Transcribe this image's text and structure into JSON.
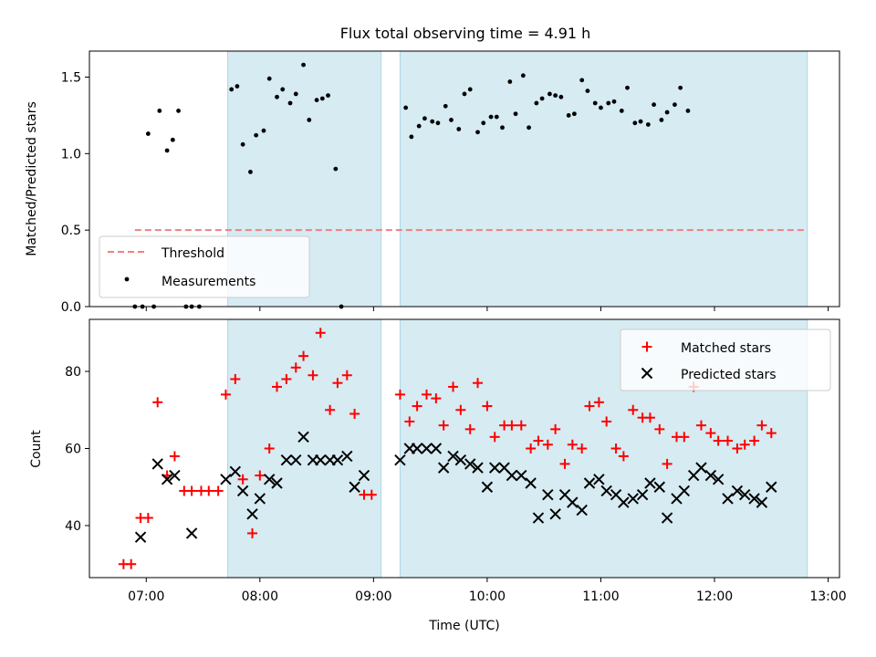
{
  "chart_data": [
    {
      "type": "scatter",
      "title": "Flux total observing time = 4.91 h",
      "xlabel": "",
      "ylabel": "Matched/Predicted stars",
      "xlim": [
        "06:30",
        "13:06"
      ],
      "ylim": [
        0,
        1.67
      ],
      "yticks": [
        "0.0",
        "0.5",
        "1.0",
        "1.5"
      ],
      "grid": false,
      "legend_position": "lower-left",
      "colors": {
        "threshold": "#f08080",
        "measurements": "#000000",
        "shade": "#add8e6"
      },
      "shaded_intervals": [
        [
          "07:43",
          "09:04"
        ],
        [
          "09:14",
          "12:49"
        ]
      ],
      "threshold": {
        "name": "Threshold",
        "value": 0.5,
        "x_range": [
          "06:54",
          "12:49"
        ]
      },
      "series": [
        {
          "name": "Measurements",
          "points": [
            [
              "06:54",
              0.0
            ],
            [
              "06:58",
              0.0
            ],
            [
              "07:01",
              1.13
            ],
            [
              "07:04",
              0.0
            ],
            [
              "07:07",
              1.28
            ],
            [
              "07:11",
              1.02
            ],
            [
              "07:14",
              1.09
            ],
            [
              "07:17",
              1.28
            ],
            [
              "07:21",
              0.0
            ],
            [
              "07:24",
              0.0
            ],
            [
              "07:28",
              0.0
            ],
            [
              "07:45",
              1.42
            ],
            [
              "07:48",
              1.44
            ],
            [
              "07:51",
              1.06
            ],
            [
              "07:55",
              0.88
            ],
            [
              "07:58",
              1.12
            ],
            [
              "08:02",
              1.15
            ],
            [
              "08:05",
              1.49
            ],
            [
              "08:09",
              1.37
            ],
            [
              "08:12",
              1.42
            ],
            [
              "08:16",
              1.33
            ],
            [
              "08:19",
              1.39
            ],
            [
              "08:23",
              1.58
            ],
            [
              "08:26",
              1.22
            ],
            [
              "08:30",
              1.35
            ],
            [
              "08:33",
              1.36
            ],
            [
              "08:36",
              1.38
            ],
            [
              "08:40",
              0.9
            ],
            [
              "08:43",
              0.0
            ],
            [
              "09:17",
              1.3
            ],
            [
              "09:20",
              1.11
            ],
            [
              "09:24",
              1.18
            ],
            [
              "09:27",
              1.23
            ],
            [
              "09:31",
              1.21
            ],
            [
              "09:34",
              1.2
            ],
            [
              "09:38",
              1.31
            ],
            [
              "09:41",
              1.22
            ],
            [
              "09:45",
              1.16
            ],
            [
              "09:48",
              1.39
            ],
            [
              "09:51",
              1.42
            ],
            [
              "09:55",
              1.14
            ],
            [
              "09:58",
              1.2
            ],
            [
              "10:02",
              1.24
            ],
            [
              "10:05",
              1.24
            ],
            [
              "10:08",
              1.17
            ],
            [
              "10:12",
              1.47
            ],
            [
              "10:15",
              1.26
            ],
            [
              "10:19",
              1.51
            ],
            [
              "10:22",
              1.17
            ],
            [
              "10:26",
              1.33
            ],
            [
              "10:29",
              1.36
            ],
            [
              "10:33",
              1.39
            ],
            [
              "10:36",
              1.38
            ],
            [
              "10:39",
              1.37
            ],
            [
              "10:43",
              1.25
            ],
            [
              "10:46",
              1.26
            ],
            [
              "10:50",
              1.48
            ],
            [
              "10:53",
              1.41
            ],
            [
              "10:57",
              1.33
            ],
            [
              "11:00",
              1.3
            ],
            [
              "11:04",
              1.33
            ],
            [
              "11:07",
              1.34
            ],
            [
              "11:11",
              1.28
            ],
            [
              "11:14",
              1.43
            ],
            [
              "11:18",
              1.2
            ],
            [
              "11:21",
              1.21
            ],
            [
              "11:25",
              1.19
            ],
            [
              "11:28",
              1.32
            ],
            [
              "11:32",
              1.22
            ],
            [
              "11:35",
              1.27
            ],
            [
              "11:39",
              1.32
            ],
            [
              "11:42",
              1.43
            ],
            [
              "11:46",
              1.28
            ]
          ]
        }
      ]
    },
    {
      "type": "scatter",
      "title": "",
      "xlabel": "Time (UTC)",
      "ylabel": "Count",
      "xlim": [
        "06:30",
        "13:06"
      ],
      "ylim": [
        26.5,
        93.5
      ],
      "xticks": [
        "07:00",
        "08:00",
        "09:00",
        "10:00",
        "11:00",
        "12:00",
        "13:00"
      ],
      "yticks": [
        "40",
        "60",
        "80"
      ],
      "grid": false,
      "legend_position": "top-right",
      "colors": {
        "matched": "#ff0000",
        "predicted": "#000000",
        "shade": "#add8e6"
      },
      "shaded_intervals": [
        [
          "07:43",
          "09:04"
        ],
        [
          "09:14",
          "12:49"
        ]
      ],
      "series": [
        {
          "name": "Matched stars",
          "marker": "plus",
          "points": [
            [
              "06:48",
              30
            ],
            [
              "06:52",
              30
            ],
            [
              "06:57",
              42
            ],
            [
              "07:01",
              42
            ],
            [
              "07:06",
              72
            ],
            [
              "07:11",
              53
            ],
            [
              "07:15",
              58
            ],
            [
              "07:20",
              49
            ],
            [
              "07:24",
              49
            ],
            [
              "07:29",
              49
            ],
            [
              "07:33",
              49
            ],
            [
              "07:38",
              49
            ],
            [
              "07:42",
              74
            ],
            [
              "07:47",
              78
            ],
            [
              "07:51",
              52
            ],
            [
              "07:56",
              38
            ],
            [
              "08:00",
              53
            ],
            [
              "08:05",
              60
            ],
            [
              "08:09",
              76
            ],
            [
              "08:14",
              78
            ],
            [
              "08:19",
              81
            ],
            [
              "08:23",
              84
            ],
            [
              "08:28",
              79
            ],
            [
              "08:32",
              90
            ],
            [
              "08:37",
              70
            ],
            [
              "08:41",
              77
            ],
            [
              "08:46",
              79
            ],
            [
              "08:50",
              69
            ],
            [
              "08:55",
              48
            ],
            [
              "08:59",
              48
            ],
            [
              "09:14",
              74
            ],
            [
              "09:19",
              67
            ],
            [
              "09:23",
              71
            ],
            [
              "09:28",
              74
            ],
            [
              "09:33",
              73
            ],
            [
              "09:37",
              66
            ],
            [
              "09:42",
              76
            ],
            [
              "09:46",
              70
            ],
            [
              "09:51",
              65
            ],
            [
              "09:55",
              77
            ],
            [
              "10:00",
              71
            ],
            [
              "10:04",
              63
            ],
            [
              "10:09",
              66
            ],
            [
              "10:13",
              66
            ],
            [
              "10:18",
              66
            ],
            [
              "10:23",
              60
            ],
            [
              "10:27",
              62
            ],
            [
              "10:32",
              61
            ],
            [
              "10:36",
              65
            ],
            [
              "10:41",
              56
            ],
            [
              "10:45",
              61
            ],
            [
              "10:50",
              60
            ],
            [
              "10:54",
              71
            ],
            [
              "10:59",
              72
            ],
            [
              "11:03",
              67
            ],
            [
              "11:08",
              60
            ],
            [
              "11:12",
              58
            ],
            [
              "11:17",
              70
            ],
            [
              "11:22",
              68
            ],
            [
              "11:26",
              68
            ],
            [
              "11:31",
              65
            ],
            [
              "11:35",
              56
            ],
            [
              "11:40",
              63
            ],
            [
              "11:44",
              63
            ],
            [
              "11:49",
              76
            ],
            [
              "11:53",
              66
            ],
            [
              "11:58",
              64
            ],
            [
              "12:02",
              62
            ],
            [
              "12:07",
              62
            ],
            [
              "12:12",
              60
            ],
            [
              "12:16",
              61
            ],
            [
              "12:21",
              62
            ],
            [
              "12:25",
              66
            ],
            [
              "12:30",
              64
            ]
          ]
        },
        {
          "name": "Predicted stars",
          "marker": "x",
          "points": [
            [
              "06:57",
              37
            ],
            [
              "07:06",
              56
            ],
            [
              "07:11",
              52
            ],
            [
              "07:15",
              53
            ],
            [
              "07:24",
              38
            ],
            [
              "07:42",
              52
            ],
            [
              "07:47",
              54
            ],
            [
              "07:51",
              49
            ],
            [
              "07:56",
              43
            ],
            [
              "08:00",
              47
            ],
            [
              "08:05",
              52
            ],
            [
              "08:09",
              51
            ],
            [
              "08:14",
              57
            ],
            [
              "08:19",
              57
            ],
            [
              "08:23",
              63
            ],
            [
              "08:28",
              57
            ],
            [
              "08:32",
              57
            ],
            [
              "08:37",
              57
            ],
            [
              "08:41",
              57
            ],
            [
              "08:46",
              58
            ],
            [
              "08:50",
              50
            ],
            [
              "08:55",
              53
            ],
            [
              "09:14",
              57
            ],
            [
              "09:19",
              60
            ],
            [
              "09:23",
              60
            ],
            [
              "09:28",
              60
            ],
            [
              "09:33",
              60
            ],
            [
              "09:37",
              55
            ],
            [
              "09:42",
              58
            ],
            [
              "09:46",
              57
            ],
            [
              "09:51",
              56
            ],
            [
              "09:55",
              55
            ],
            [
              "10:00",
              50
            ],
            [
              "10:04",
              55
            ],
            [
              "10:09",
              55
            ],
            [
              "10:13",
              53
            ],
            [
              "10:18",
              53
            ],
            [
              "10:23",
              51
            ],
            [
              "10:27",
              42
            ],
            [
              "10:32",
              48
            ],
            [
              "10:36",
              43
            ],
            [
              "10:41",
              48
            ],
            [
              "10:45",
              46
            ],
            [
              "10:50",
              44
            ],
            [
              "10:54",
              51
            ],
            [
              "10:59",
              52
            ],
            [
              "11:03",
              49
            ],
            [
              "11:08",
              48
            ],
            [
              "11:12",
              46
            ],
            [
              "11:17",
              47
            ],
            [
              "11:22",
              48
            ],
            [
              "11:26",
              51
            ],
            [
              "11:31",
              50
            ],
            [
              "11:35",
              42
            ],
            [
              "11:40",
              47
            ],
            [
              "11:44",
              49
            ],
            [
              "11:49",
              53
            ],
            [
              "11:53",
              55
            ],
            [
              "11:58",
              53
            ],
            [
              "12:02",
              52
            ],
            [
              "12:07",
              47
            ],
            [
              "12:12",
              49
            ],
            [
              "12:16",
              48
            ],
            [
              "12:21",
              47
            ],
            [
              "12:25",
              46
            ],
            [
              "12:30",
              50
            ]
          ]
        }
      ]
    }
  ]
}
